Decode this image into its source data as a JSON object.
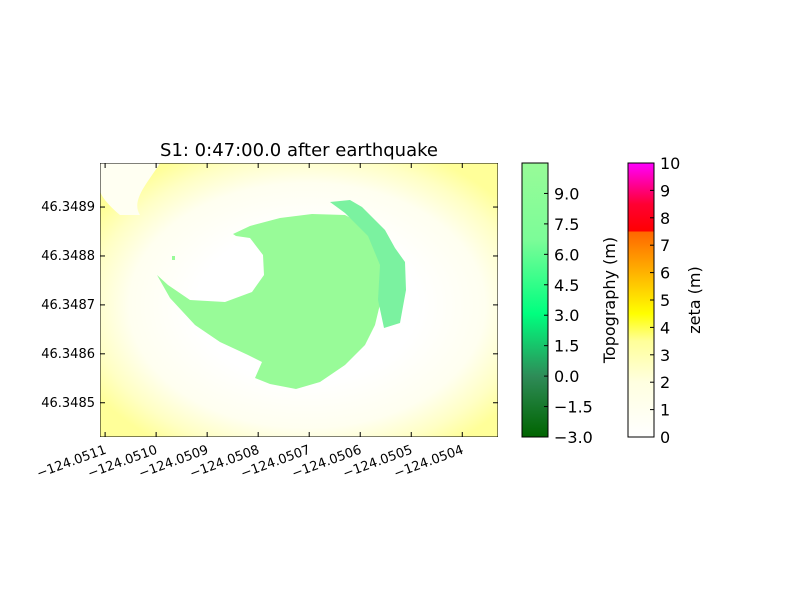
{
  "chart_data": {
    "type": "heatmap",
    "title": "S1: 0:47:00.0 after earthquake",
    "xlabel": "",
    "ylabel": "",
    "x_ticks": [
      "−124.0511",
      "−124.0510",
      "−124.0509",
      "−124.0508",
      "−124.0507",
      "−124.0506",
      "−124.0505",
      "−124.0504"
    ],
    "x_tick_values": [
      -124.0511,
      -124.051,
      -124.0509,
      -124.0508,
      -124.0507,
      -124.0506,
      -124.0505,
      -124.0504
    ],
    "y_ticks": [
      "46.3489",
      "46.3488",
      "46.3487",
      "46.3486",
      "46.3485"
    ],
    "y_tick_values": [
      46.3489,
      46.3488,
      46.3487,
      46.3486,
      46.3485
    ],
    "xlim": [
      -124.05111,
      -124.05033
    ],
    "ylim": [
      46.34843,
      46.34899
    ],
    "grid": false,
    "features": {
      "dry_land_topography_m": 9.5,
      "channel_topography_m": 7.0,
      "flooded_surface_zeta_m": "approximately 2.5–3.5, lower near the central island"
    },
    "colorbars": [
      {
        "label": "Topography (m)",
        "ticks": [
          "−3.0",
          "−1.5",
          "0.0",
          "1.5",
          "3.0",
          "4.5",
          "6.0",
          "7.5",
          "9.0"
        ],
        "tick_values": [
          -3.0,
          -1.5,
          0.0,
          1.5,
          3.0,
          4.5,
          6.0,
          7.5,
          9.0
        ],
        "range": [
          -3.0,
          10.5
        ],
        "colors": [
          "#006400",
          "#2e8b57",
          "#00ff7f",
          "#98fb98"
        ]
      },
      {
        "label": "zeta (m)",
        "ticks": [
          "0",
          "1",
          "2",
          "3",
          "4",
          "5",
          "6",
          "7",
          "8",
          "9",
          "10"
        ],
        "tick_values": [
          0,
          1,
          2,
          3,
          4,
          5,
          6,
          7,
          8,
          9,
          10
        ],
        "range": [
          0,
          10
        ],
        "colors": [
          "#ffffff",
          "#ffff99",
          "#ffff00",
          "#ffcc00",
          "#ff8000",
          "#ff4000",
          "#ff0000",
          "#ff00ff"
        ]
      }
    ]
  }
}
